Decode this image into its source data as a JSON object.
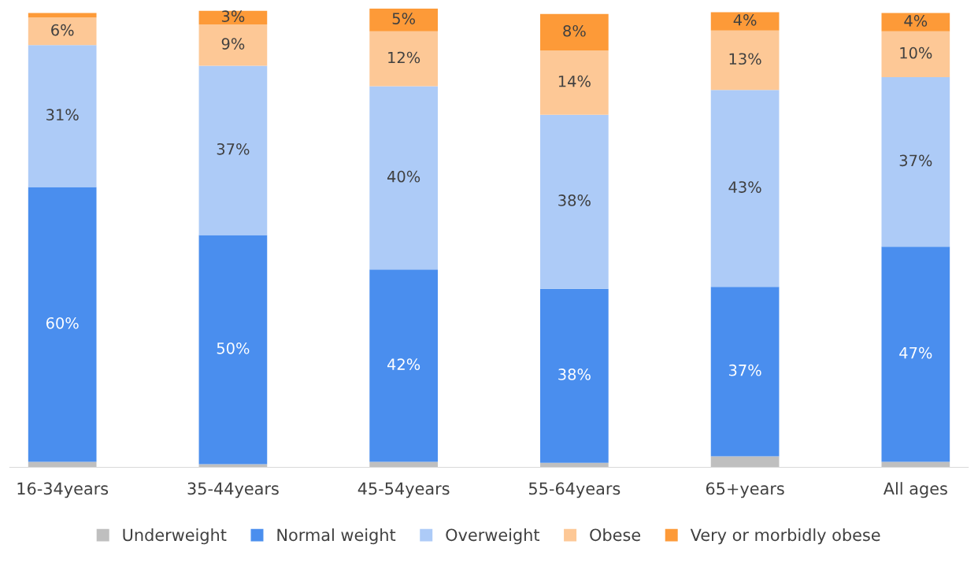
{
  "chart_data": {
    "type": "bar",
    "stacked": true,
    "legend": "bottom",
    "grid": false,
    "tick_labels": "x",
    "categories": [
      "16-34years",
      "35-44years",
      "45-54years",
      "55-64years",
      "65+years",
      "All ages"
    ],
    "series": [
      {
        "name": "Underweight",
        "color": "#bfbfbf",
        "values": [
          1.2,
          0.7,
          1.2,
          1,
          2.4,
          1.2
        ],
        "value_labels": [
          null,
          null,
          null,
          null,
          null,
          null
        ]
      },
      {
        "name": "Normal weight",
        "color": "#4a8eee",
        "values": [
          60,
          50,
          42,
          38,
          37,
          47
        ],
        "value_labels": [
          "60%",
          "50%",
          "42%",
          "38%",
          "37%",
          "47%"
        ]
      },
      {
        "name": "Overweight",
        "color": "#adcbf7",
        "values": [
          31,
          37,
          40,
          38,
          43,
          37
        ],
        "value_labels": [
          "31%",
          "37%",
          "40%",
          "38%",
          "43%",
          "37%"
        ]
      },
      {
        "name": "Obese",
        "color": "#fdc896",
        "values": [
          6,
          9,
          12,
          14,
          13,
          10
        ],
        "value_labels": [
          "6%",
          "9%",
          "12%",
          "14%",
          "13%",
          "10%"
        ]
      },
      {
        "name": "Very or morbidly obese",
        "color": "#fd9a38",
        "values": [
          1,
          3,
          5,
          8,
          4,
          4
        ],
        "value_labels": [
          null,
          "3%",
          "5%",
          "8%",
          "4%",
          "4%"
        ]
      }
    ]
  }
}
